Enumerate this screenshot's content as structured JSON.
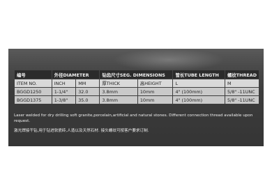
{
  "table": {
    "header": [
      "编号",
      "外径DIAMETER",
      "钻齿尺寸SEG. DIMENSIONS",
      "管长TUBE LENGTH",
      "螺纹THREAD"
    ],
    "subheader": [
      "ITEM NO.",
      "INCH",
      "MM",
      "厚THICK",
      "高HEIGHT",
      "L",
      "M"
    ],
    "rows": [
      [
        "BGGD1250",
        "1-1/4\"",
        "32.0",
        "3.8mm",
        "10mm",
        "4\" (100mm)",
        "5/8\" -11UNC"
      ],
      [
        "BGGD1375",
        "1-3/8\"",
        "35.0",
        "3.8mm",
        "10mm",
        "4\" (100mm)",
        "5/8\" -11UNC"
      ]
    ]
  },
  "description": {
    "english": "Laser welded for dry drilling  soft granite,porcelain,artificial and natural stones. Different connection thread available upon request.",
    "chinese": "激光焊接干钻,用于钻进软瓷砖,人造以及天然石材. 接头螺纹可按客户要求订制."
  }
}
